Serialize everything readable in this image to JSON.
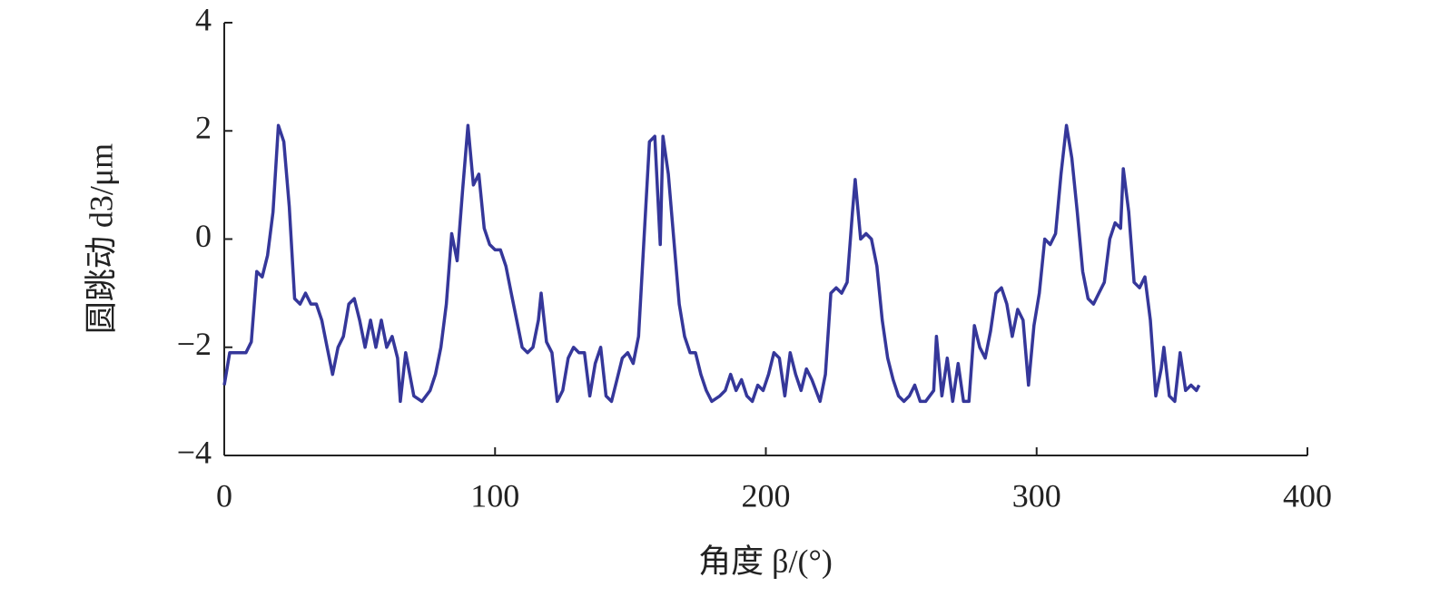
{
  "chart_data": {
    "type": "line",
    "xlabel": "角度 β/(°)",
    "ylabel": "圆跳动 d3/μm",
    "xlim": [
      0,
      400
    ],
    "xticks": [
      0,
      100,
      200,
      300,
      400
    ],
    "ylim": [
      -4,
      4
    ],
    "yticks": [
      {
        "value": -4,
        "label": "−4"
      },
      {
        "value": -2,
        "label": "−2"
      },
      0,
      2,
      4
    ],
    "grid": false,
    "series": [
      {
        "color": "#35379a",
        "x": [
          0,
          2,
          5,
          8,
          10,
          12,
          14,
          16,
          18,
          20,
          22,
          24,
          26,
          28,
          30,
          32,
          34,
          36,
          38,
          40,
          42,
          44,
          46,
          48,
          50,
          52,
          54,
          56,
          58,
          60,
          62,
          64,
          65,
          67,
          70,
          73,
          76,
          78,
          80,
          82,
          84,
          86,
          88,
          90,
          92,
          94,
          96,
          98,
          100,
          102,
          104,
          106,
          108,
          110,
          112,
          114,
          116,
          117,
          119,
          121,
          123,
          125,
          127,
          129,
          131,
          133,
          135,
          137,
          139,
          141,
          143,
          145,
          147,
          149,
          151,
          153,
          155,
          157,
          159,
          161,
          162,
          164,
          166,
          168,
          170,
          172,
          174,
          176,
          178,
          180,
          183,
          185,
          187,
          189,
          191,
          193,
          195,
          197,
          199,
          201,
          203,
          205,
          207,
          209,
          211,
          213,
          215,
          217,
          220,
          222,
          224,
          226,
          228,
          230,
          232,
          233,
          235,
          237,
          239,
          241,
          243,
          245,
          247,
          249,
          251,
          253,
          255,
          257,
          259,
          262,
          263,
          265,
          267,
          269,
          271,
          273,
          275,
          277,
          279,
          281,
          283,
          285,
          287,
          289,
          291,
          293,
          295,
          297,
          299,
          301,
          303,
          305,
          307,
          309,
          311,
          313,
          315,
          317,
          319,
          321,
          323,
          325,
          327,
          329,
          331,
          332,
          334,
          336,
          338,
          340,
          342,
          344,
          346,
          347,
          349,
          351,
          353,
          355,
          357,
          359,
          360
        ],
        "values": [
          -2.7,
          -2.1,
          -2.1,
          -2.1,
          -1.9,
          -0.6,
          -0.7,
          -0.3,
          0.5,
          2.1,
          1.8,
          0.6,
          -1.1,
          -1.2,
          -1.0,
          -1.2,
          -1.2,
          -1.5,
          -2.0,
          -2.5,
          -2.0,
          -1.8,
          -1.2,
          -1.1,
          -1.5,
          -2.0,
          -1.5,
          -2.0,
          -1.5,
          -2.0,
          -1.8,
          -2.2,
          -3.0,
          -2.1,
          -2.9,
          -3.0,
          -2.8,
          -2.5,
          -2.0,
          -1.2,
          0.1,
          -0.4,
          0.9,
          2.1,
          1.0,
          1.2,
          0.2,
          -0.1,
          -0.2,
          -0.2,
          -0.5,
          -1.0,
          -1.5,
          -2.0,
          -2.1,
          -2.0,
          -1.5,
          -1.0,
          -1.9,
          -2.1,
          -3.0,
          -2.8,
          -2.2,
          -2.0,
          -2.1,
          -2.1,
          -2.9,
          -2.3,
          -2.0,
          -2.9,
          -3.0,
          -2.6,
          -2.2,
          -2.1,
          -2.3,
          -1.8,
          0.0,
          1.8,
          1.9,
          -0.1,
          1.9,
          1.2,
          0.0,
          -1.2,
          -1.8,
          -2.1,
          -2.1,
          -2.5,
          -2.8,
          -3.0,
          -2.9,
          -2.8,
          -2.5,
          -2.8,
          -2.6,
          -2.9,
          -3.0,
          -2.7,
          -2.8,
          -2.5,
          -2.1,
          -2.2,
          -2.9,
          -2.1,
          -2.5,
          -2.8,
          -2.4,
          -2.6,
          -3.0,
          -2.5,
          -1.0,
          -0.9,
          -1.0,
          -0.8,
          0.5,
          1.1,
          0.0,
          0.1,
          0.0,
          -0.5,
          -1.5,
          -2.2,
          -2.6,
          -2.9,
          -3.0,
          -2.9,
          -2.7,
          -3.0,
          -3.0,
          -2.8,
          -1.8,
          -2.9,
          -2.2,
          -3.0,
          -2.3,
          -3.0,
          -3.0,
          -1.6,
          -2.0,
          -2.2,
          -1.7,
          -1.0,
          -0.9,
          -1.2,
          -1.8,
          -1.3,
          -1.5,
          -2.7,
          -1.6,
          -1.0,
          0.0,
          -0.1,
          0.1,
          1.2,
          2.1,
          1.5,
          0.5,
          -0.6,
          -1.1,
          -1.2,
          -1.0,
          -0.8,
          0.0,
          0.3,
          0.2,
          1.3,
          0.5,
          -0.8,
          -0.9,
          -0.7,
          -1.5,
          -2.9,
          -2.4,
          -2.0,
          -2.9,
          -3.0,
          -2.1,
          -2.8,
          -2.7,
          -2.8,
          -2.7
        ]
      }
    ]
  }
}
